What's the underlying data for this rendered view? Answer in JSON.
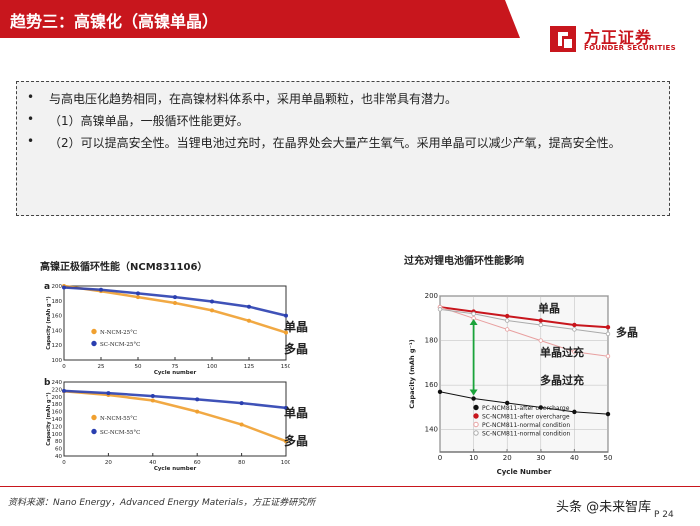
{
  "header": {
    "title": "趋势三：高镍化（高镍单晶）"
  },
  "logo": {
    "name": "方正证券",
    "subtitle": "FOUNDER SECURITIES"
  },
  "bullets": [
    "与高电压化趋势相同，在高镍材料体系中，采用单晶颗粒，也非常具有潜力。",
    "（1）高镍单晶，一般循环性能更好。",
    "（2）可以提高安全性。当锂电池过充时，在晶界处会大量产生氧气。采用单晶可以减少产氧，提高安全性。"
  ],
  "left_figure": {
    "caption": "高镍正极循环性能（NCM831106）",
    "label_single": "单晶",
    "label_poly": "多晶"
  },
  "right_figure": {
    "caption": "过充对锂电池循环性能影响",
    "label_single": "单晶",
    "label_poly": "多晶",
    "label_single_over": "单晶过充",
    "label_poly_over": "多晶过充"
  },
  "colors": {
    "brand_red": "#c8161d",
    "orange": "#f0a030",
    "blue": "#2a3fb0"
  },
  "chart_data": [
    {
      "type": "scatter",
      "panel": "a",
      "xlabel": "Cycle number",
      "ylabel": "Capacity (mAh g⁻¹)",
      "xlim": [
        0,
        150
      ],
      "ylim": [
        100,
        200
      ],
      "xticks": [
        "0",
        "25",
        "50",
        "75",
        "100",
        "125",
        "150"
      ],
      "yticks": [
        "100",
        "120",
        "140",
        "160",
        "180",
        "200"
      ],
      "series": [
        {
          "name": "N-NCM-25°C",
          "x": [
            0,
            25,
            50,
            75,
            100,
            125,
            150
          ],
          "y": [
            200,
            193,
            185,
            177,
            167,
            153,
            137
          ]
        },
        {
          "name": "SC-NCM-25°C",
          "x": [
            0,
            25,
            50,
            75,
            100,
            125,
            150
          ],
          "y": [
            198,
            195,
            190,
            185,
            179,
            172,
            160
          ]
        }
      ]
    },
    {
      "type": "scatter",
      "panel": "b",
      "xlabel": "Cycle number",
      "ylabel": "Capacity (mAh g⁻¹)",
      "xlim": [
        0,
        100
      ],
      "ylim": [
        40,
        240
      ],
      "xticks": [
        "0",
        "20",
        "40",
        "60",
        "80",
        "100"
      ],
      "yticks": [
        "40",
        "60",
        "80",
        "100",
        "120",
        "140",
        "160",
        "180",
        "200",
        "220",
        "240"
      ],
      "series": [
        {
          "name": "N-NCM-55°C",
          "x": [
            0,
            20,
            40,
            60,
            80,
            100
          ],
          "y": [
            215,
            205,
            190,
            160,
            125,
            80
          ]
        },
        {
          "name": "SC-NCM-55°C",
          "x": [
            0,
            20,
            40,
            60,
            80,
            100
          ],
          "y": [
            216,
            210,
            202,
            193,
            183,
            170
          ]
        }
      ]
    },
    {
      "type": "scatter",
      "panel": "c",
      "xlabel": "Cycle Number",
      "ylabel": "Capacity (mAh g⁻¹)",
      "xlim": [
        0,
        50
      ],
      "ylim": [
        130,
        200
      ],
      "xticks": [
        "0",
        "10",
        "20",
        "30",
        "40",
        "50"
      ],
      "yticks": [
        "140",
        "160",
        "180",
        "200"
      ],
      "series": [
        {
          "name": "PC-NCM811-after overcharge",
          "x": [
            0,
            10,
            20,
            30,
            40,
            50
          ],
          "y": [
            157,
            154,
            152,
            150,
            148,
            147
          ]
        },
        {
          "name": "SC-NCM811-after overcharge",
          "x": [
            0,
            10,
            20,
            30,
            40,
            50
          ],
          "y": [
            195,
            193,
            191,
            189,
            187,
            186
          ]
        },
        {
          "name": "PC-NCM811-normal condition",
          "x": [
            0,
            10,
            20,
            30,
            40,
            50
          ],
          "y": [
            195,
            190,
            185,
            180,
            175,
            173
          ]
        },
        {
          "name": "SC-NCM811-normal condition",
          "x": [
            0,
            10,
            20,
            30,
            40,
            50
          ],
          "y": [
            194,
            192,
            189,
            187,
            185,
            183
          ]
        }
      ]
    }
  ],
  "footer": {
    "source": "资料来源：Nano Energy，Advanced Energy Materials，方正证券研究所",
    "page": "P 24",
    "watermark": "头条 @未来智库"
  }
}
